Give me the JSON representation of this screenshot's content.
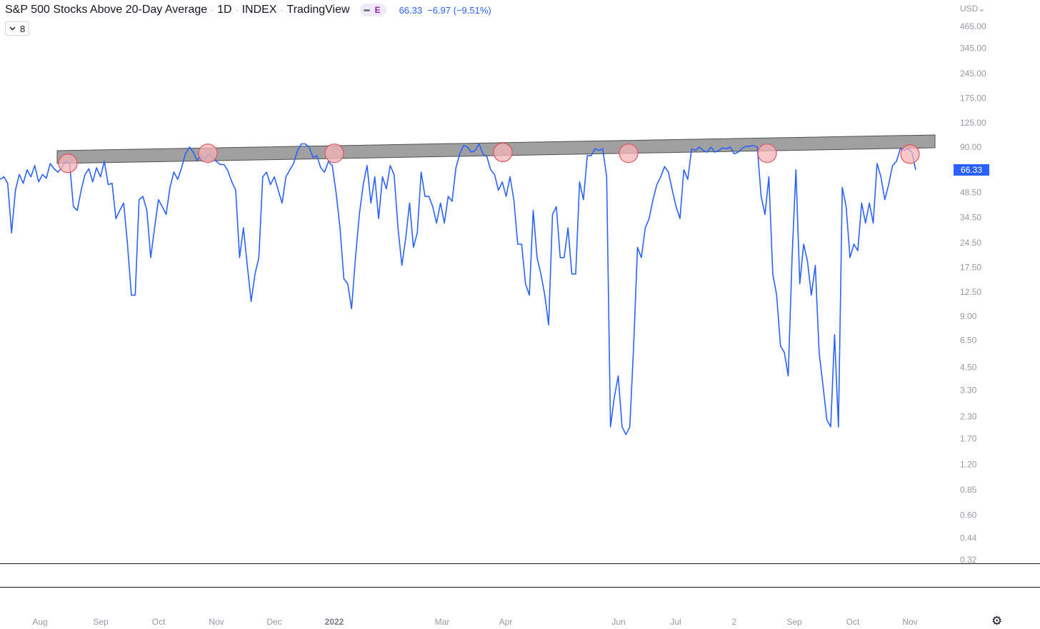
{
  "header": {
    "title": "S&P 500 Stocks Above 20-Day Average",
    "interval": "1D",
    "exchange": "INDEX",
    "source": "TradingView",
    "earnings_badge": "E",
    "last_value": "66.33",
    "change": "−6.97 (−9.51%)"
  },
  "indicator_toggle": {
    "count": "8",
    "chevron": "chevron-down-icon"
  },
  "currency": "USD",
  "price_tag": "66.33",
  "settings_icon": "gear-icon",
  "colors": {
    "line": "#2962ff",
    "band_fill": "#a0a0a0",
    "marker_fill": "#f4b4b8",
    "marker_stroke": "#e0525e"
  },
  "chart_data": {
    "type": "line",
    "title": "S&P 500 Stocks Above 20-Day Average",
    "scale": "log",
    "y_ticks": [
      "465.00",
      "345.00",
      "245.00",
      "175.00",
      "125.00",
      "90.00",
      "48.50",
      "34.50",
      "24.50",
      "17.50",
      "12.50",
      "9.00",
      "6.50",
      "4.50",
      "3.30",
      "2.30",
      "1.70",
      "1.20",
      "0.85",
      "0.60",
      "0.44",
      "0.32"
    ],
    "x_ticks": [
      {
        "label": "Aug",
        "bold": false
      },
      {
        "label": "Sep",
        "bold": false
      },
      {
        "label": "Oct",
        "bold": false
      },
      {
        "label": "Nov",
        "bold": false
      },
      {
        "label": "Dec",
        "bold": false
      },
      {
        "label": "2022",
        "bold": true
      },
      {
        "label": "Mar",
        "bold": false
      },
      {
        "label": "Apr",
        "bold": false
      },
      {
        "label": "Jun",
        "bold": false
      },
      {
        "label": "Jul",
        "bold": false
      },
      {
        "label": "2",
        "bold": false
      },
      {
        "label": "Sep",
        "bold": false
      },
      {
        "label": "Oct",
        "bold": false
      },
      {
        "label": "Nov",
        "bold": false
      }
    ],
    "series": [
      {
        "values": [
          58,
          60,
          55,
          28,
          50,
          62,
          55,
          66,
          60,
          70,
          56,
          62,
          59,
          72,
          67,
          64,
          68,
          74,
          72,
          40,
          38,
          50,
          62,
          67,
          56,
          68,
          60,
          74,
          54,
          55,
          34,
          38,
          42,
          24,
          12,
          12,
          44,
          46,
          38,
          20,
          30,
          44,
          40,
          36,
          52,
          64,
          58,
          68,
          82,
          90,
          84,
          75,
          80,
          76,
          82,
          79,
          74,
          71,
          71,
          65,
          56,
          50,
          20,
          30,
          18,
          11,
          16,
          20,
          60,
          64,
          54,
          60,
          50,
          42,
          60,
          66,
          72,
          86,
          94,
          94,
          90,
          78,
          80,
          68,
          64,
          74,
          70,
          48,
          30,
          15,
          14,
          10,
          20,
          36,
          54,
          70,
          42,
          60,
          34,
          60,
          51,
          70,
          62,
          30,
          18,
          26,
          42,
          23,
          28,
          64,
          46,
          46,
          40,
          32,
          42,
          32,
          46,
          43,
          68,
          82,
          92,
          90,
          84,
          86,
          94,
          82,
          79,
          66,
          62,
          50,
          56,
          46,
          60,
          44,
          24,
          24,
          14,
          12,
          38,
          20,
          16,
          12,
          8,
          36,
          40,
          20,
          20,
          30,
          16,
          16,
          56,
          44,
          80,
          80,
          88,
          86,
          88,
          60,
          2,
          3,
          4,
          2,
          1.8,
          2,
          6,
          23,
          20,
          30,
          34,
          44,
          54,
          60,
          69,
          64,
          50,
          40,
          34,
          66,
          58,
          88,
          86,
          90,
          86,
          84,
          90,
          84,
          86,
          89,
          88,
          90,
          82,
          84,
          88,
          91,
          91,
          92,
          90,
          46,
          36,
          60,
          16,
          12,
          6,
          5.5,
          4,
          20,
          66,
          14,
          24,
          19,
          12,
          18,
          5.5,
          3.5,
          2.2,
          2,
          7,
          2,
          52,
          40,
          20,
          24,
          22,
          42,
          32,
          42,
          32,
          72,
          60,
          44,
          54,
          70,
          74,
          88,
          86,
          88,
          84,
          66
        ]
      }
    ],
    "resistance_band": {
      "start": 88,
      "end": 98
    },
    "touch_markers": [
      75,
      86,
      86,
      87,
      86,
      86,
      85
    ]
  }
}
